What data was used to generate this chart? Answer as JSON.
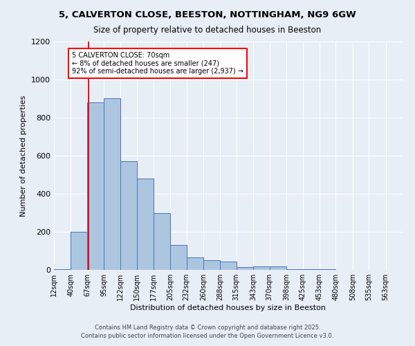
{
  "title_line1": "5, CALVERTON CLOSE, BEESTON, NOTTINGHAM, NG9 6GW",
  "title_line2": "Size of property relative to detached houses in Beeston",
  "xlabel": "Distribution of detached houses by size in Beeston",
  "ylabel": "Number of detached properties",
  "footer_line1": "Contains HM Land Registry data © Crown copyright and database right 2025.",
  "footer_line2": "Contains public sector information licensed under the Open Government Licence v3.0.",
  "annotation_line1": "5 CALVERTON CLOSE: 70sqm",
  "annotation_line2": "← 8% of detached houses are smaller (247)",
  "annotation_line3": "92% of semi-detached houses are larger (2,937) →",
  "bar_color": "#adc6e0",
  "bar_edge_color": "#4472c4",
  "bg_color": "#e8eef5",
  "red_line_x": 70,
  "categories": [
    "12sqm",
    "40sqm",
    "67sqm",
    "95sqm",
    "122sqm",
    "150sqm",
    "177sqm",
    "205sqm",
    "232sqm",
    "260sqm",
    "288sqm",
    "315sqm",
    "343sqm",
    "370sqm",
    "398sqm",
    "425sqm",
    "453sqm",
    "480sqm",
    "508sqm",
    "535sqm",
    "563sqm"
  ],
  "bin_edges": [
    12,
    40,
    67,
    95,
    122,
    150,
    177,
    205,
    232,
    260,
    288,
    315,
    343,
    370,
    398,
    425,
    453,
    480,
    508,
    535,
    563,
    591
  ],
  "values": [
    5,
    200,
    880,
    900,
    570,
    480,
    300,
    130,
    65,
    50,
    45,
    15,
    20,
    20,
    2,
    2,
    2,
    0,
    0,
    0,
    0
  ],
  "ylim": [
    0,
    1200
  ],
  "yticks": [
    0,
    200,
    400,
    600,
    800,
    1000,
    1200
  ]
}
